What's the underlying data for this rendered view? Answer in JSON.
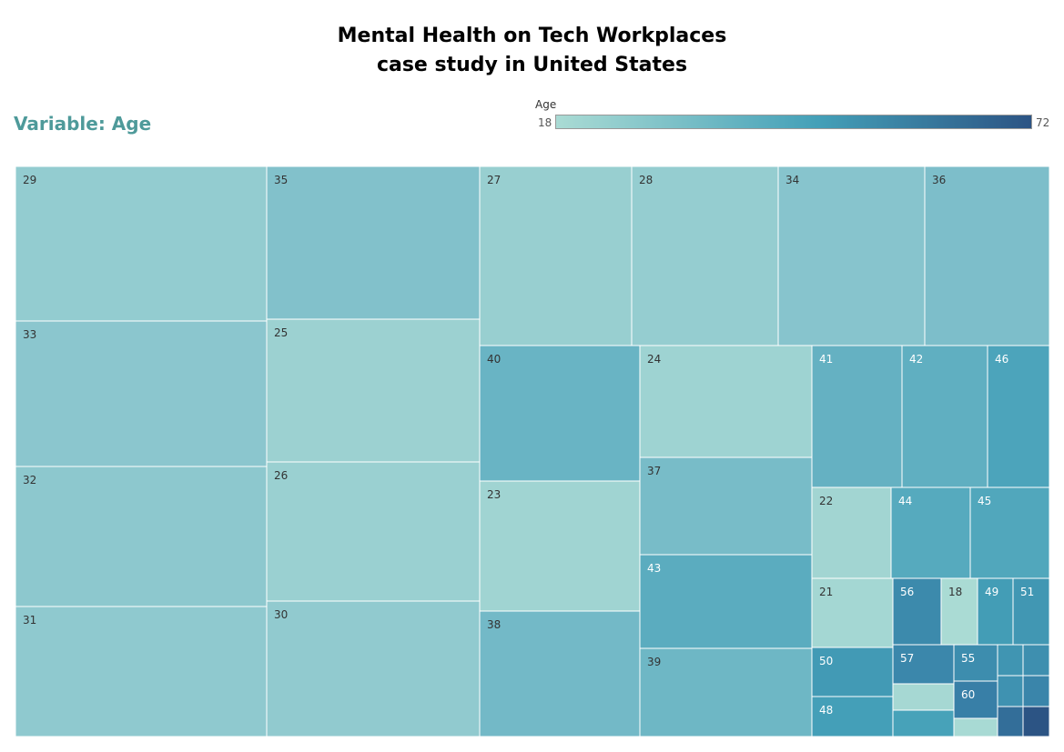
{
  "title_line1": "Mental Health on Tech Workplaces",
  "title_line2": "case study in United States",
  "variable_label": "Variable: Age",
  "legend": {
    "title": "Age",
    "min_label": "18",
    "max_label": "72",
    "color_low": "#aadbd4",
    "color_mid": "#44a0b8",
    "color_high": "#2c5484"
  },
  "chart_data": {
    "type": "treemap",
    "color_variable": "Age",
    "color_range": [
      18,
      72
    ],
    "cells": [
      {
        "label": "29",
        "age": 29
      },
      {
        "label": "33",
        "age": 33
      },
      {
        "label": "32",
        "age": 32
      },
      {
        "label": "31",
        "age": 31
      },
      {
        "label": "35",
        "age": 35
      },
      {
        "label": "25",
        "age": 25
      },
      {
        "label": "26",
        "age": 26
      },
      {
        "label": "30",
        "age": 30
      },
      {
        "label": "27",
        "age": 27
      },
      {
        "label": "28",
        "age": 28
      },
      {
        "label": "34",
        "age": 34
      },
      {
        "label": "36",
        "age": 36
      },
      {
        "label": "40",
        "age": 40
      },
      {
        "label": "23",
        "age": 23
      },
      {
        "label": "38",
        "age": 38
      },
      {
        "label": "24",
        "age": 24
      },
      {
        "label": "37",
        "age": 37
      },
      {
        "label": "43",
        "age": 43
      },
      {
        "label": "39",
        "age": 39
      },
      {
        "label": "41",
        "age": 41
      },
      {
        "label": "42",
        "age": 42
      },
      {
        "label": "46",
        "age": 46
      },
      {
        "label": "22",
        "age": 22
      },
      {
        "label": "44",
        "age": 44
      },
      {
        "label": "45",
        "age": 45
      },
      {
        "label": "21",
        "age": 21
      },
      {
        "label": "56",
        "age": 56
      },
      {
        "label": "18",
        "age": 18
      },
      {
        "label": "49",
        "age": 49
      },
      {
        "label": "51",
        "age": 51
      },
      {
        "label": "50",
        "age": 50
      },
      {
        "label": "57",
        "age": 57
      },
      {
        "label": "55",
        "age": 55
      },
      {
        "label": "48",
        "age": 48
      },
      {
        "label": "60",
        "age": 60
      },
      {
        "label": "",
        "age": 20
      },
      {
        "label": "",
        "age": 47
      },
      {
        "label": "",
        "age": 19
      },
      {
        "label": "",
        "age": 52
      },
      {
        "label": "",
        "age": 54
      },
      {
        "label": "",
        "age": 53
      },
      {
        "label": "",
        "age": 58
      },
      {
        "label": "",
        "age": 65
      },
      {
        "label": "",
        "age": 72
      }
    ]
  }
}
